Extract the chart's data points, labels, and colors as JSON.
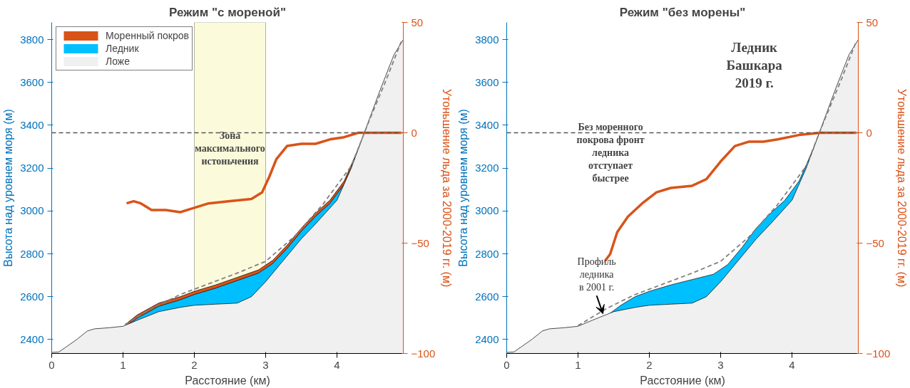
{
  "chart_data": [
    {
      "type": "area",
      "title": "Режим \"с мореной\"",
      "xlabel": "Расстояние (км)",
      "ylabel": "Высота над уровнем моря (м)",
      "y2label": "Утоньшение льда за 2000-2019 гг. (м)",
      "xlim": [
        0,
        4.93
      ],
      "xticks": [
        0,
        1,
        2,
        3,
        4
      ],
      "ylim": [
        2335,
        3880
      ],
      "yticks": [
        2400,
        2600,
        2800,
        3000,
        3200,
        3400,
        3600,
        3800
      ],
      "y2lim": [
        -100,
        50
      ],
      "y2ticks": [
        -100,
        -50,
        0,
        50
      ],
      "legend": "top left",
      "series": [
        {
          "name": "Моренный покров",
          "color": "#d95319",
          "x": [
            1.03,
            1.2,
            1.5,
            1.8,
            2.0,
            2.3,
            2.6,
            2.9,
            3.1,
            3.3,
            3.5,
            3.7,
            3.9,
            4.1,
            4.3,
            4.45
          ],
          "values": [
            2470,
            2515,
            2570,
            2600,
            2625,
            2655,
            2690,
            2725,
            2770,
            2840,
            2920,
            2990,
            3050,
            3140,
            3290,
            3420
          ]
        },
        {
          "name": "Ледник",
          "color": "#00bfff",
          "x": [
            1.03,
            1.2,
            1.5,
            1.8,
            2.0,
            2.3,
            2.6,
            2.9,
            3.1,
            3.3,
            3.5,
            3.7,
            3.9,
            4.1,
            4.3,
            4.45
          ],
          "values": [
            2460,
            2500,
            2555,
            2585,
            2610,
            2640,
            2675,
            2710,
            2755,
            2825,
            2905,
            2975,
            3035,
            3125,
            3275,
            3410
          ]
        },
        {
          "name": "Ложе",
          "color": "#f0f0f0",
          "x": [
            0,
            0.1,
            0.2,
            0.35,
            0.5,
            0.6,
            0.8,
            1.0,
            1.2,
            1.5,
            1.8,
            2.0,
            2.3,
            2.6,
            2.8,
            3.0,
            3.2,
            3.5,
            3.7,
            4.0,
            4.2,
            4.4,
            4.6,
            4.8,
            4.93
          ],
          "values": [
            2340,
            2342,
            2365,
            2400,
            2440,
            2450,
            2455,
            2462,
            2490,
            2530,
            2550,
            2560,
            2565,
            2570,
            2600,
            2670,
            2750,
            2870,
            2940,
            3050,
            3200,
            3380,
            3560,
            3730,
            3800
          ]
        },
        {
          "type": "line",
          "color": "#808080",
          "line_style": "dashed",
          "x": [
            1.03,
            1.4,
            1.8,
            2.2,
            2.6,
            3.0,
            3.4,
            3.8,
            4.2,
            4.45,
            4.7,
            4.9
          ],
          "values": [
            2470,
            2545,
            2610,
            2660,
            2710,
            2765,
            2880,
            3030,
            3210,
            3420,
            3620,
            3790
          ]
        },
        {
          "type": "line",
          "axis": "y2",
          "color": "#d95319",
          "x": [
            1.05,
            1.15,
            1.25,
            1.4,
            1.6,
            1.8,
            2.0,
            2.2,
            2.5,
            2.8,
            2.95,
            3.05,
            3.15,
            3.3,
            3.5,
            3.7,
            3.9,
            4.1,
            4.3,
            4.5,
            4.9
          ],
          "values": [
            -32,
            -31,
            -32,
            -35,
            -35,
            -36,
            -34,
            -32,
            -31,
            -30,
            -27,
            -20,
            -12,
            -6,
            -5,
            -5,
            -3,
            -2,
            0,
            0,
            0
          ]
        }
      ],
      "ref_lines": [
        {
          "axis": "y2",
          "value": 0,
          "color": "#555555",
          "line_style": "dashed"
        }
      ],
      "bands": [
        {
          "axis": "x",
          "from": 2,
          "to": 3,
          "color": "#fafad2",
          "label": "Зона\nмаксимального\nистоньчения"
        }
      ]
    },
    {
      "type": "area",
      "title": "Режим \"без морены\"",
      "xlabel": "Расстояние (км)",
      "ylabel": "Высота над уровнем моря (м)",
      "y2label": "Утоньшение льда за 2000-2019 гг. (м)",
      "xlim": [
        0,
        4.93
      ],
      "xticks": [
        0,
        1,
        2,
        3,
        4
      ],
      "ylim": [
        2335,
        3880
      ],
      "yticks": [
        2400,
        2600,
        2800,
        3000,
        3200,
        3400,
        3600,
        3800
      ],
      "y2lim": [
        -100,
        50
      ],
      "y2ticks": [
        -100,
        -50,
        0,
        50
      ],
      "series": [
        {
          "color": "#00bfff",
          "x": [
            1.4,
            1.6,
            1.8,
            2.0,
            2.3,
            2.6,
            2.9,
            3.1,
            3.3,
            3.5,
            3.7,
            3.9,
            4.1,
            4.3,
            4.45
          ],
          "values": [
            2510,
            2560,
            2600,
            2625,
            2655,
            2680,
            2705,
            2750,
            2830,
            2920,
            2990,
            3050,
            3140,
            3290,
            3420
          ]
        },
        {
          "color": "#f0f0f0",
          "x": [
            0,
            0.1,
            0.2,
            0.35,
            0.5,
            0.6,
            0.8,
            1.0,
            1.2,
            1.5,
            1.8,
            2.0,
            2.3,
            2.6,
            2.8,
            3.0,
            3.2,
            3.5,
            3.7,
            4.0,
            4.2,
            4.4,
            4.6,
            4.8,
            4.93
          ],
          "values": [
            2340,
            2342,
            2365,
            2400,
            2440,
            2450,
            2455,
            2462,
            2490,
            2530,
            2550,
            2560,
            2565,
            2570,
            2600,
            2670,
            2750,
            2870,
            2940,
            3050,
            3200,
            3380,
            3560,
            3730,
            3800
          ]
        },
        {
          "type": "line",
          "color": "#808080",
          "line_style": "dashed",
          "x": [
            1.0,
            1.4,
            1.8,
            2.2,
            2.6,
            3.0,
            3.4,
            3.8,
            4.2,
            4.45,
            4.7,
            4.9
          ],
          "values": [
            2465,
            2545,
            2610,
            2660,
            2710,
            2765,
            2880,
            3030,
            3210,
            3420,
            3620,
            3790
          ]
        },
        {
          "type": "line",
          "axis": "y2",
          "color": "#d95319",
          "x": [
            1.38,
            1.45,
            1.55,
            1.7,
            1.9,
            2.1,
            2.3,
            2.6,
            2.8,
            3.0,
            3.2,
            3.4,
            3.6,
            3.8,
            4.1,
            4.4,
            4.9
          ],
          "values": [
            -58,
            -55,
            -45,
            -38,
            -32,
            -27,
            -25,
            -24,
            -21,
            -13,
            -6,
            -4,
            -4,
            -3,
            -1,
            0,
            0
          ]
        }
      ],
      "ref_lines": [
        {
          "axis": "y2",
          "value": 0,
          "color": "#555555",
          "line_style": "dashed"
        }
      ],
      "annotations": [
        "Ледник\nБашкара\n2019 г.",
        "Без моренного\nпокрова фронт\nледника\nотступает\nбыстрее",
        {
          "text": "Профиль\nледника\nв 2001 г.",
          "x": 1.35,
          "y": 2520
        }
      ]
    }
  ]
}
